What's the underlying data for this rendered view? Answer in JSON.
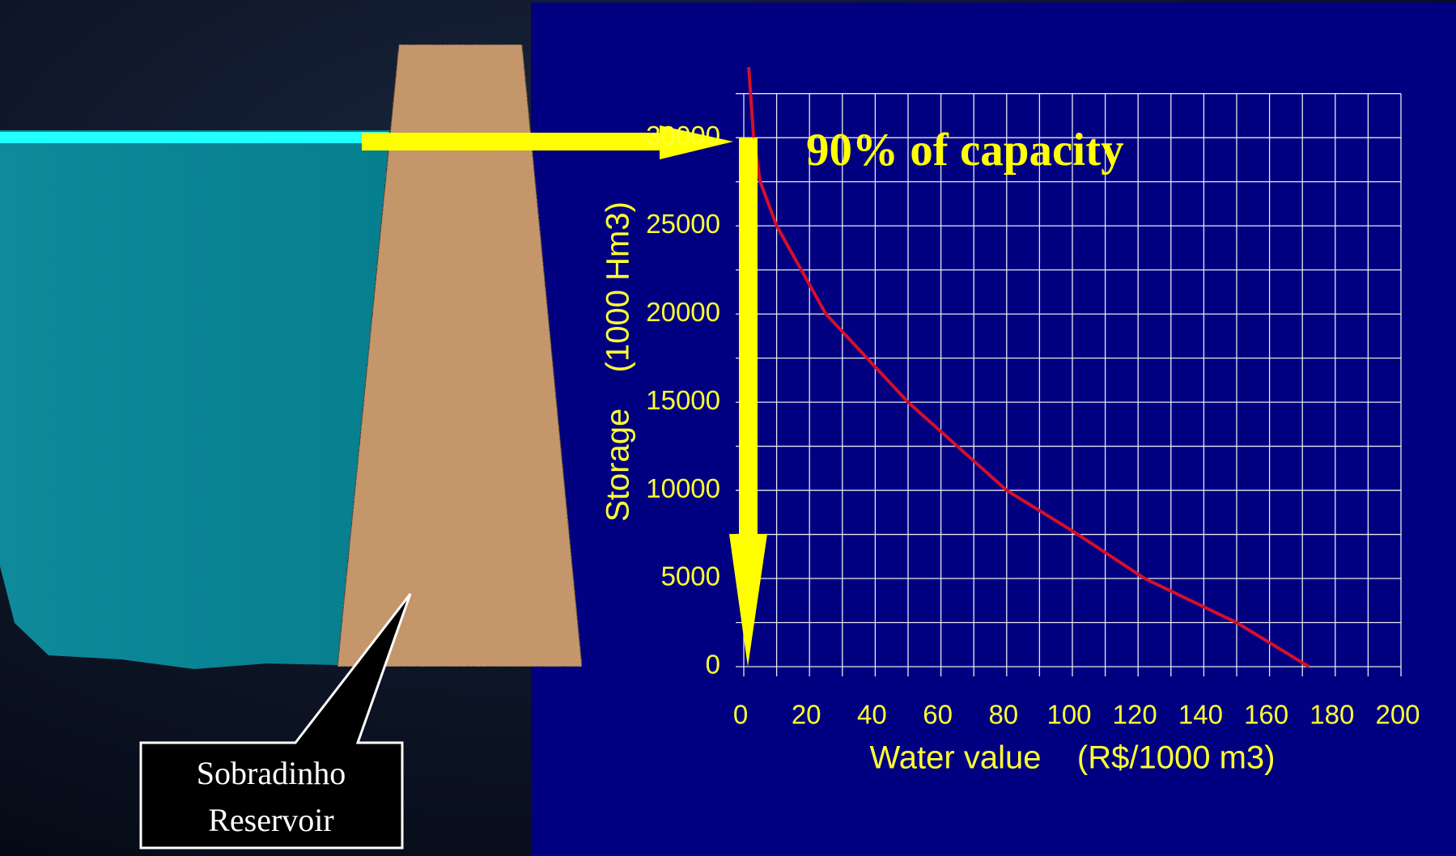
{
  "chart_data": {
    "type": "line",
    "annotation": "90% of capacity",
    "callout": [
      "Sobradinho",
      "Reservoir"
    ],
    "x_label": "Water value    (R$/1000 m3)",
    "y_label": "Storage    (1000 Hm3)",
    "x": [
      1.5,
      3,
      5,
      10,
      25,
      50,
      80,
      100,
      122,
      150,
      172
    ],
    "values": [
      34000,
      30000,
      27500,
      25000,
      20000,
      15000,
      10000,
      7700,
      5000,
      2500,
      0
    ],
    "color": "#d4102a",
    "xlim": [
      0,
      200
    ],
    "xticks": [
      0,
      20,
      40,
      60,
      80,
      100,
      120,
      140,
      160,
      180,
      200
    ],
    "xminorticks": [
      10,
      30,
      50,
      70,
      90,
      110,
      130,
      150,
      170,
      190
    ],
    "ylim": [
      0,
      34000
    ],
    "yticks": [
      0,
      5000,
      10000,
      15000,
      20000,
      25000,
      30000
    ],
    "yminorticks": [
      2500,
      7500,
      12500,
      17500,
      22500,
      27500,
      32500
    ],
    "grid": true
  }
}
